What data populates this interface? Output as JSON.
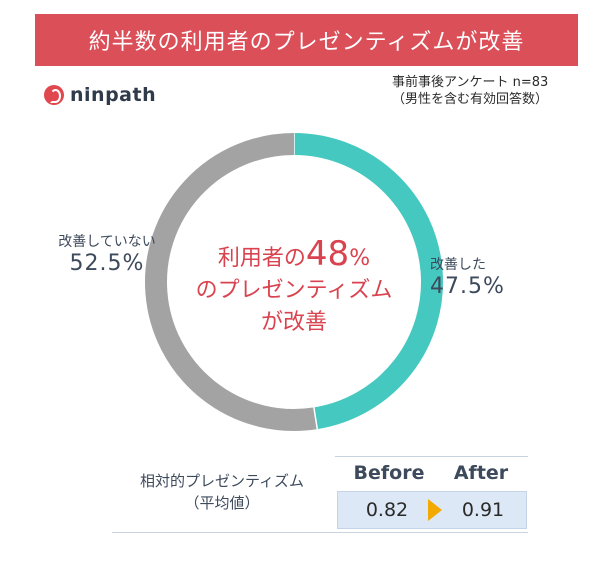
{
  "title": "約半数の利用者のプレゼンティズムが改善",
  "logo": {
    "text": "ninpath",
    "icon": "ninpath-logo-icon"
  },
  "survey_note": {
    "line1": "事前事後アンケート n=83",
    "line2": "（男性を含む有効回答数）"
  },
  "center": {
    "prefix": "利用者の",
    "highlight": "48",
    "suffix": "%",
    "line2": "のプレゼンティズム",
    "line3": "が改善"
  },
  "colors": {
    "improved": "#44c8c0",
    "not_improved": "#a3a3a3",
    "title_bg": "#db4f59",
    "accent_text": "#d9434f",
    "arrow": "#f2a900",
    "value_box": "#dde8f6"
  },
  "chart_data": {
    "type": "pie",
    "style": "donut",
    "labels": [
      "改善した",
      "改善していない"
    ],
    "label_text": [
      "47.5%",
      "52.5%"
    ],
    "values": [
      47.5,
      52.5
    ],
    "start": "top, clockwise"
  },
  "table": {
    "label_line1": "相対的プレゼンティズム",
    "label_line2": "（平均値）",
    "columns": [
      "Before",
      "After"
    ],
    "values": [
      "0.82",
      "0.91"
    ],
    "arrow_icon": "right-arrow-icon"
  }
}
